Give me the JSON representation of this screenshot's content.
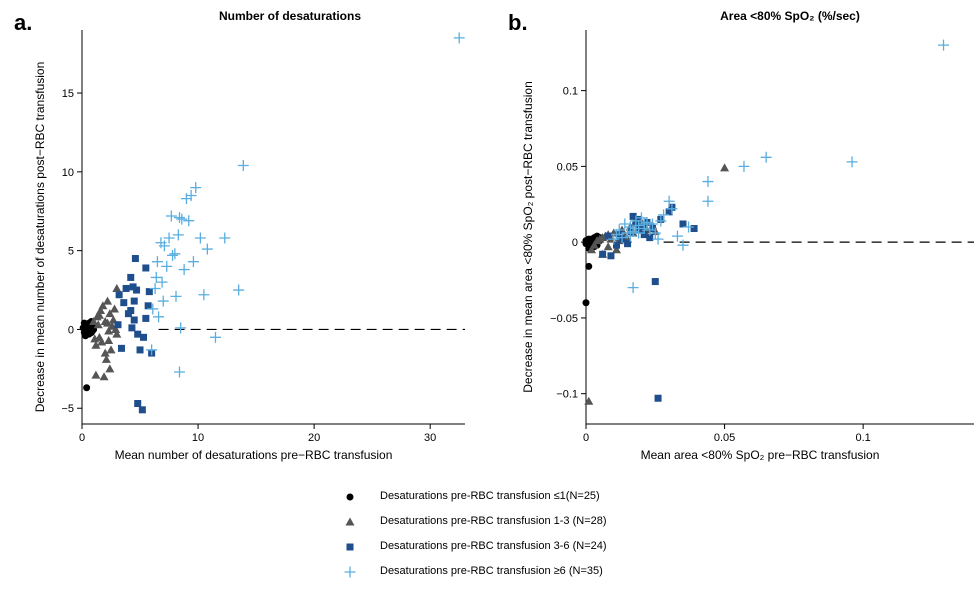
{
  "panel_a": {
    "letter": "a.",
    "title": "Number of desaturations"
  },
  "panel_b": {
    "letter": "b.",
    "title": "Area <80% SpO₂ (%/sec)"
  },
  "legend": [
    {
      "label": "Desaturations pre-RBC transfusion ≤1(N=25)",
      "marker": "circle",
      "color": "#000000"
    },
    {
      "label": "Desaturations pre-RBC transfusion 1-3 (N=28)",
      "marker": "triangle",
      "color": "#555555"
    },
    {
      "label": "Desaturations pre-RBC transfusion 3-6 (N=24)",
      "marker": "square",
      "color": "#1f4e8c"
    },
    {
      "label": "Desaturations pre-RBC transfusion ≥6 (N=35)",
      "marker": "plus",
      "color": "#5aaee0"
    }
  ],
  "chart_data": [
    {
      "type": "scatter",
      "title": "Number of desaturations",
      "xlabel": "Mean number of desaturations pre−RBC transfusion",
      "ylabel": "Decrease in mean number of desaturations post−RBC transfusion",
      "xlim": [
        0,
        33
      ],
      "ylim": [
        -6,
        19
      ],
      "xticks": [
        0,
        10,
        20,
        30
      ],
      "yticks": [
        -5,
        0,
        5,
        10,
        15
      ],
      "reference_line": {
        "y": 0,
        "style": "dashed"
      },
      "series": [
        {
          "name": "Desaturations pre-RBC transfusion ≤1(N=25)",
          "marker": "circle",
          "color": "#000000",
          "points": [
            [
              0.1,
              0.1
            ],
            [
              0.2,
              -0.2
            ],
            [
              0.3,
              0.2
            ],
            [
              0.4,
              -0.1
            ],
            [
              0.5,
              0.3
            ],
            [
              0.5,
              0.1
            ],
            [
              0.6,
              -0.3
            ],
            [
              0.6,
              0.4
            ],
            [
              0.7,
              0
            ],
            [
              0.7,
              0.2
            ],
            [
              0.8,
              -0.2
            ],
            [
              0.8,
              0.5
            ],
            [
              0.9,
              0.1
            ],
            [
              0.9,
              -0.1
            ],
            [
              1,
              0.2
            ],
            [
              1,
              0
            ],
            [
              0.3,
              -0.4
            ],
            [
              0.4,
              0.3
            ],
            [
              0.2,
              0.4
            ],
            [
              0.6,
              0.1
            ],
            [
              0.5,
              -0.2
            ],
            [
              0.7,
              -0.1
            ],
            [
              0.8,
              0.3
            ],
            [
              0.4,
              -3.7
            ],
            [
              0.9,
              0.4
            ]
          ]
        },
        {
          "name": "Desaturations pre-RBC transfusion 1-3 (N=28)",
          "marker": "triangle",
          "color": "#555555",
          "points": [
            [
              1,
              0.5
            ],
            [
              1.1,
              -0.6
            ],
            [
              1.2,
              -1
            ],
            [
              1.2,
              -2.9
            ],
            [
              1.3,
              0.8
            ],
            [
              1.4,
              0.3
            ],
            [
              1.5,
              -0.5
            ],
            [
              1.6,
              1.2
            ],
            [
              1.7,
              -0.8
            ],
            [
              1.8,
              1.5
            ],
            [
              1.9,
              -3
            ],
            [
              2,
              -1.5
            ],
            [
              2,
              0.5
            ],
            [
              2.1,
              -1.9
            ],
            [
              2.2,
              1.8
            ],
            [
              2.3,
              -0.1
            ],
            [
              2.4,
              1
            ],
            [
              2.4,
              -2.5
            ],
            [
              2.5,
              -1.3
            ],
            [
              2.6,
              0.2
            ],
            [
              2.7,
              0.6
            ],
            [
              2.8,
              1.3
            ],
            [
              2.9,
              0
            ],
            [
              3,
              -0.3
            ],
            [
              1.5,
              0.9
            ],
            [
              2.3,
              -0.7
            ],
            [
              2.2,
              0.4
            ],
            [
              3,
              2.6
            ]
          ]
        },
        {
          "name": "Desaturations pre-RBC transfusion 3-6 (N=24)",
          "marker": "square",
          "color": "#1f4e8c",
          "points": [
            [
              3.1,
              0.3
            ],
            [
              3.2,
              2.2
            ],
            [
              3.4,
              -1.2
            ],
            [
              3.6,
              1.7
            ],
            [
              3.8,
              2.6
            ],
            [
              4,
              1
            ],
            [
              4.2,
              3.3
            ],
            [
              4.3,
              0.1
            ],
            [
              4.4,
              2.7
            ],
            [
              4.5,
              1.8
            ],
            [
              4.5,
              0.6
            ],
            [
              4.6,
              4.5
            ],
            [
              4.7,
              2.5
            ],
            [
              4.8,
              -0.3
            ],
            [
              4.8,
              -4.7
            ],
            [
              5,
              -1.3
            ],
            [
              5.2,
              -5.1
            ],
            [
              5.3,
              -0.5
            ],
            [
              5.5,
              0.7
            ],
            [
              5.5,
              3.9
            ],
            [
              5.7,
              1.5
            ],
            [
              5.8,
              2.4
            ],
            [
              6,
              -1.5
            ],
            [
              4.2,
              1.2
            ]
          ]
        },
        {
          "name": "Desaturations pre-RBC transfusion ≥6 (N=35)",
          "marker": "plus",
          "color": "#5aaee0",
          "points": [
            [
              6,
              -1.3
            ],
            [
              6.1,
              1.3
            ],
            [
              6.3,
              2.6
            ],
            [
              6.4,
              3.3
            ],
            [
              6.5,
              4.3
            ],
            [
              6.6,
              0.8
            ],
            [
              6.8,
              5.5
            ],
            [
              6.9,
              3
            ],
            [
              7,
              1.8
            ],
            [
              7.1,
              5.3
            ],
            [
              7.3,
              4
            ],
            [
              7.5,
              5.8
            ],
            [
              7.7,
              7.2
            ],
            [
              8,
              4.8
            ],
            [
              8.1,
              2.1
            ],
            [
              8.3,
              6
            ],
            [
              8.4,
              -2.7
            ],
            [
              8.5,
              0.1
            ],
            [
              8.6,
              7
            ],
            [
              8.8,
              3.8
            ],
            [
              9,
              8.3
            ],
            [
              9.2,
              6.9
            ],
            [
              9.4,
              8.5
            ],
            [
              9.6,
              4.3
            ],
            [
              9.8,
              9
            ],
            [
              10.2,
              5.8
            ],
            [
              10.5,
              2.2
            ],
            [
              10.8,
              5.1
            ],
            [
              11.5,
              -0.5
            ],
            [
              12.3,
              5.8
            ],
            [
              13.5,
              2.5
            ],
            [
              13.9,
              10.4
            ],
            [
              32.5,
              18.5
            ],
            [
              7.8,
              4.7
            ],
            [
              8.4,
              7.1
            ]
          ]
        }
      ]
    },
    {
      "type": "scatter",
      "title": "Area <80% SpO₂ (%/sec)",
      "xlabel": "Mean area <80% SpO₂ pre−RBC transfusion",
      "ylabel": "Decrease in mean area <80% SpO₂ post−RBC transfusion",
      "xlim": [
        0,
        0.14
      ],
      "ylim": [
        -0.12,
        0.14
      ],
      "xticks": [
        0,
        0.05,
        0.1
      ],
      "yticks": [
        -0.1,
        -0.05,
        0,
        0.05,
        0.1
      ],
      "xtick_labels": [
        "0",
        "0.05",
        "0.1"
      ],
      "ytick_labels": [
        "−0.1",
        "−0.05",
        "0",
        "0.05",
        "0.1"
      ],
      "reference_line": {
        "y": 0,
        "style": "dashed"
      },
      "series": [
        {
          "name": "Desaturations pre-RBC transfusion ≤1(N=25)",
          "marker": "circle",
          "color": "#000000",
          "points": [
            [
              0,
              -0.001
            ],
            [
              0,
              -0.04
            ],
            [
              0.001,
              -0.016
            ],
            [
              0.001,
              0.001
            ],
            [
              0.001,
              -0.002
            ],
            [
              0.002,
              0.002
            ],
            [
              0.002,
              -0.001
            ],
            [
              0.003,
              0.003
            ],
            [
              0.003,
              0
            ],
            [
              0.004,
              0.004
            ],
            [
              0.004,
              -0.002
            ],
            [
              0.005,
              0.003
            ],
            [
              0.005,
              0.001
            ],
            [
              0.001,
              -0.004
            ],
            [
              0.002,
              0
            ],
            [
              0.003,
              -0.003
            ],
            [
              0.001,
              0.002
            ],
            [
              0.002,
              0.001
            ],
            [
              0.003,
              0.002
            ],
            [
              0.004,
              0.001
            ],
            [
              0,
              0.001
            ],
            [
              0.002,
              -0.003
            ],
            [
              0.004,
              0.002
            ],
            [
              0.003,
              0.001
            ],
            [
              0.001,
              0
            ]
          ]
        },
        {
          "name": "Desaturations pre-RBC transfusion 1-3 (N=28)",
          "marker": "triangle",
          "color": "#555555",
          "points": [
            [
              0.001,
              -0.105
            ],
            [
              0.002,
              -0.005
            ],
            [
              0.003,
              -0.002
            ],
            [
              0.004,
              0.001
            ],
            [
              0.005,
              0.002
            ],
            [
              0.006,
              -0.008
            ],
            [
              0.007,
              0.004
            ],
            [
              0.008,
              -0.003
            ],
            [
              0.009,
              0.002
            ],
            [
              0.01,
              0.006
            ],
            [
              0.011,
              -0.005
            ],
            [
              0.012,
              0.003
            ],
            [
              0.013,
              0.008
            ],
            [
              0.014,
              0.004
            ],
            [
              0.015,
              0.002
            ],
            [
              0.016,
              0.01
            ],
            [
              0.017,
              0.006
            ],
            [
              0.018,
              0.014
            ],
            [
              0.019,
              0.012
            ],
            [
              0.02,
              0.013
            ],
            [
              0.021,
              0.01
            ],
            [
              0.022,
              0.008
            ],
            [
              0.024,
              0.011
            ],
            [
              0.025,
              0.007
            ],
            [
              0.006,
              0.003
            ],
            [
              0.008,
              0.005
            ],
            [
              0.05,
              0.049
            ],
            [
              0.012,
              0.001
            ]
          ]
        },
        {
          "name": "Desaturations pre-RBC transfusion 3-6 (N=24)",
          "marker": "square",
          "color": "#1f4e8c",
          "points": [
            [
              0.006,
              -0.008
            ],
            [
              0.008,
              0.004
            ],
            [
              0.009,
              -0.009
            ],
            [
              0.011,
              -0.002
            ],
            [
              0.013,
              0.002
            ],
            [
              0.016,
              0.007
            ],
            [
              0.017,
              0.017
            ],
            [
              0.018,
              0.012
            ],
            [
              0.019,
              0.015
            ],
            [
              0.02,
              0.01
            ],
            [
              0.021,
              0.005
            ],
            [
              0.022,
              0.013
            ],
            [
              0.023,
              0.003
            ],
            [
              0.024,
              0.009
            ],
            [
              0.025,
              -0.026
            ],
            [
              0.026,
              -0.103
            ],
            [
              0.03,
              0.02
            ],
            [
              0.031,
              0.023
            ],
            [
              0.035,
              0.012
            ],
            [
              0.039,
              0.009
            ],
            [
              0.015,
              -0.001
            ],
            [
              0.012,
              0.005
            ],
            [
              0.027,
              0.015
            ],
            [
              0.019,
              0.008
            ]
          ]
        },
        {
          "name": "Desaturations pre-RBC transfusion ≥6 (N=35)",
          "marker": "plus",
          "color": "#5aaee0",
          "points": [
            [
              0.01,
              0.002
            ],
            [
              0.011,
              0.005
            ],
            [
              0.012,
              0.008
            ],
            [
              0.013,
              0.003
            ],
            [
              0.014,
              0.012
            ],
            [
              0.015,
              0.006
            ],
            [
              0.016,
              0.01
            ],
            [
              0.016,
              0.004
            ],
            [
              0.017,
              0.007
            ],
            [
              0.017,
              -0.03
            ],
            [
              0.018,
              0.014
            ],
            [
              0.019,
              0.011
            ],
            [
              0.02,
              0.016
            ],
            [
              0.021,
              0.009
            ],
            [
              0.022,
              0.013
            ],
            [
              0.023,
              0.008
            ],
            [
              0.024,
              0.012
            ],
            [
              0.025,
              0.006
            ],
            [
              0.026,
              0.002
            ],
            [
              0.027,
              0.014
            ],
            [
              0.028,
              0.018
            ],
            [
              0.03,
              0.027
            ],
            [
              0.031,
              0.022
            ],
            [
              0.033,
              0.004
            ],
            [
              0.035,
              -0.002
            ],
            [
              0.037,
              0.01
            ],
            [
              0.044,
              0.027
            ],
            [
              0.044,
              0.04
            ],
            [
              0.057,
              0.05
            ],
            [
              0.065,
              0.056
            ],
            [
              0.096,
              0.053
            ],
            [
              0.129,
              0.13
            ],
            [
              0.019,
              0.006
            ],
            [
              0.021,
              0.012
            ],
            [
              0.018,
              0.009
            ]
          ]
        }
      ]
    }
  ]
}
